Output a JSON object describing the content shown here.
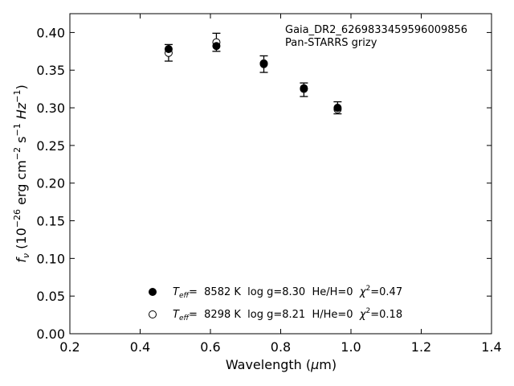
{
  "chart_data": {
    "type": "scatter",
    "xlabel": "Wavelength (μm)",
    "xlabel_parts": [
      "Wavelength (",
      "μ",
      "m)"
    ],
    "ylabel_parts": [
      "f",
      "ν",
      " (10",
      "−26",
      " erg cm",
      "−2",
      " s",
      "−1",
      " Hz",
      "−1",
      ")"
    ],
    "xlim": [
      0.2,
      1.4
    ],
    "ylim": [
      0.0,
      0.425
    ],
    "xticks": [
      "0.2",
      "0.4",
      "0.6",
      "0.8",
      "1.0",
      "1.2",
      "1.4"
    ],
    "yticks": [
      "0.00",
      "0.05",
      "0.10",
      "0.15",
      "0.20",
      "0.25",
      "0.30",
      "0.35",
      "0.40"
    ],
    "grid": false,
    "annotation": [
      "Gaia_DR2_6269833459596009856",
      "Pan-STARRS grizy"
    ],
    "observed": {
      "x": [
        0.481,
        0.617,
        0.752,
        0.866,
        0.962
      ],
      "y": [
        0.373,
        0.387,
        0.358,
        0.324,
        0.3
      ],
      "yerr": [
        0.011,
        0.012,
        0.011,
        0.009,
        0.008
      ]
    },
    "series": [
      {
        "marker": "filled-circle",
        "x": [
          0.481,
          0.617,
          0.752,
          0.866,
          0.962
        ],
        "y": [
          0.378,
          0.382,
          0.358,
          0.326,
          0.3
        ],
        "legend_parts": [
          "T",
          "eff",
          "=  8582 K  log g=8.30  He/H=0  ",
          "χ",
          "2",
          "=0.47"
        ]
      },
      {
        "marker": "open-circle",
        "x": [
          0.481,
          0.617,
          0.752,
          0.866,
          0.962
        ],
        "y": [
          0.373,
          0.387,
          0.359,
          0.325,
          0.298
        ],
        "legend_parts": [
          "T",
          "eff",
          "=  8298 K  log g=8.21  H/He=0  ",
          "χ",
          "2",
          "=0.18"
        ]
      }
    ],
    "legend_placement": "lower-center"
  }
}
